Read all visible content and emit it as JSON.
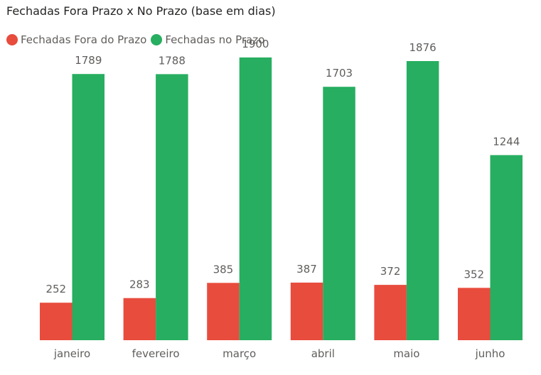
{
  "chart_data": {
    "type": "bar",
    "title": "Fechadas Fora Prazo x No Prazo (base em dias)",
    "categories": [
      "janeiro",
      "fevereiro",
      "março",
      "abril",
      "maio",
      "junho"
    ],
    "series": [
      {
        "name": "Fechadas Fora do Prazo",
        "color": "#e84c3d",
        "values": [
          252,
          283,
          385,
          387,
          372,
          352
        ]
      },
      {
        "name": "Fechadas no Prazo",
        "color": "#27ae60",
        "values": [
          1789,
          1788,
          1900,
          1703,
          1876,
          1244
        ]
      }
    ],
    "ylim": [
      0,
      2000
    ],
    "grid": false,
    "legend_position": "top-left",
    "xlabel": "",
    "ylabel": ""
  }
}
